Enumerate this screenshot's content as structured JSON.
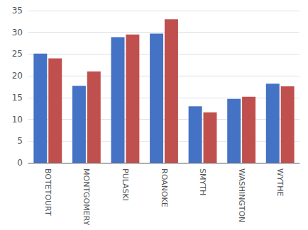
{
  "chart_data": {
    "type": "bar",
    "categories": [
      "BOTETOURT",
      "MONTGOMERY",
      "PULASKI",
      "ROANOKE",
      "SMYTH",
      "WASHINGTON",
      "WYTHE"
    ],
    "series": [
      {
        "color": "#4472C4",
        "values": [
          25.1,
          17.7,
          28.9,
          29.7,
          13.0,
          14.7,
          18.2
        ]
      },
      {
        "color": "#C0504D",
        "values": [
          24.0,
          21.0,
          29.5,
          33.0,
          11.6,
          15.2,
          17.6
        ]
      }
    ],
    "ylim": [
      0,
      35
    ],
    "yticks": [
      0,
      5,
      10,
      15,
      20,
      25,
      30,
      35
    ],
    "grid": true
  }
}
